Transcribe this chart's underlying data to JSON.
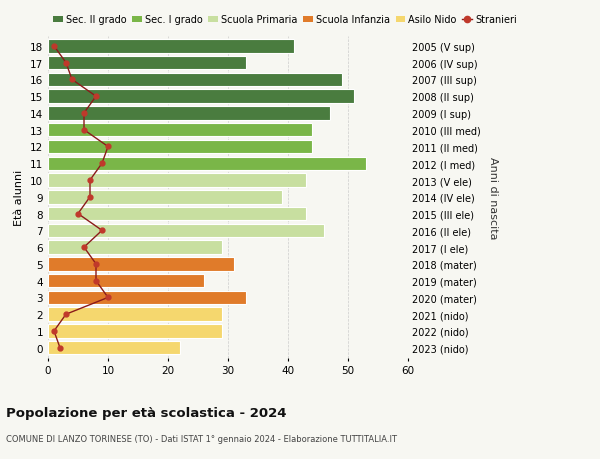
{
  "ages": [
    18,
    17,
    16,
    15,
    14,
    13,
    12,
    11,
    10,
    9,
    8,
    7,
    6,
    5,
    4,
    3,
    2,
    1,
    0
  ],
  "anni_nascita": [
    "2005 (V sup)",
    "2006 (IV sup)",
    "2007 (III sup)",
    "2008 (II sup)",
    "2009 (I sup)",
    "2010 (III med)",
    "2011 (II med)",
    "2012 (I med)",
    "2013 (V ele)",
    "2014 (IV ele)",
    "2015 (III ele)",
    "2016 (II ele)",
    "2017 (I ele)",
    "2018 (mater)",
    "2019 (mater)",
    "2020 (mater)",
    "2021 (nido)",
    "2022 (nido)",
    "2023 (nido)"
  ],
  "bar_values": [
    41,
    33,
    49,
    51,
    47,
    44,
    44,
    53,
    43,
    39,
    43,
    46,
    29,
    31,
    26,
    33,
    29,
    29,
    22
  ],
  "stranieri": [
    1,
    3,
    4,
    8,
    6,
    6,
    10,
    9,
    7,
    7,
    5,
    9,
    6,
    8,
    8,
    10,
    3,
    1,
    2
  ],
  "bar_colors": [
    "#4a7c3f",
    "#4a7c3f",
    "#4a7c3f",
    "#4a7c3f",
    "#4a7c3f",
    "#7ab648",
    "#7ab648",
    "#7ab648",
    "#c8dfa0",
    "#c8dfa0",
    "#c8dfa0",
    "#c8dfa0",
    "#c8dfa0",
    "#e07b2a",
    "#e07b2a",
    "#e07b2a",
    "#f5d76e",
    "#f5d76e",
    "#f5d76e"
  ],
  "legend_labels": [
    "Sec. II grado",
    "Sec. I grado",
    "Scuola Primaria",
    "Scuola Infanzia",
    "Asilo Nido",
    "Stranieri"
  ],
  "legend_colors": [
    "#4a7c3f",
    "#7ab648",
    "#c8dfa0",
    "#e07b2a",
    "#f5d76e",
    "#c0392b"
  ],
  "stranieri_color": "#c0392b",
  "stranieri_line_color": "#8b1a1a",
  "ylabel_left": "Età alunni",
  "ylabel_right": "Anni di nascita",
  "title_main": "Popolazione per età scolastica - 2024",
  "title_sub": "COMUNE DI LANZO TORINESE (TO) - Dati ISTAT 1° gennaio 2024 - Elaborazione TUTTITALIA.IT",
  "xlim": [
    0,
    60
  ],
  "xticks": [
    0,
    10,
    20,
    30,
    40,
    50,
    60
  ],
  "bg_color": "#f7f7f2",
  "bar_height": 0.8
}
